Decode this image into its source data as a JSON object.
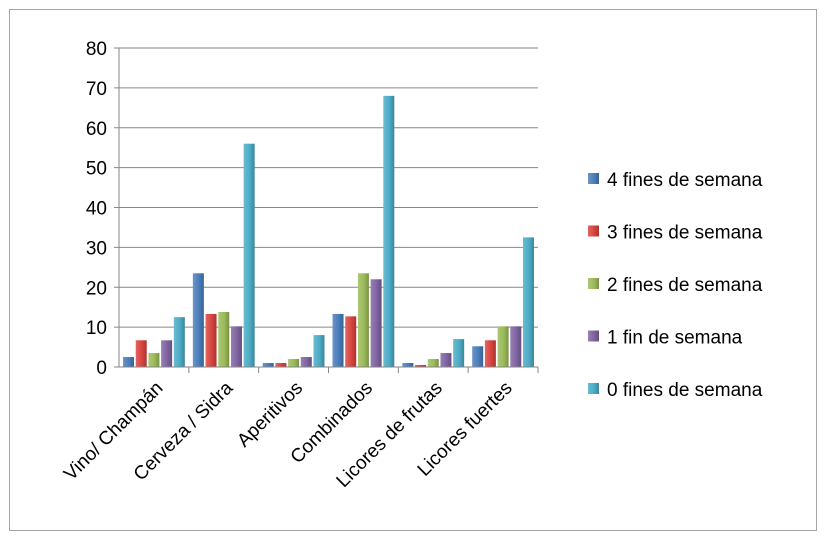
{
  "chart_data": {
    "type": "bar",
    "categories": [
      "Vino/ Champán",
      "Cerveza / Sidra",
      "Aperitivos",
      "Combinados",
      "Licores de frutas",
      "Licores fuertes"
    ],
    "series": [
      {
        "name": "4 fines de semana",
        "color": "#4a7ebb",
        "values": [
          2.5,
          23.5,
          1,
          13.3,
          1,
          5.2
        ]
      },
      {
        "name": "3 fines de semana",
        "color": "#d9443f",
        "values": [
          6.7,
          13.3,
          1,
          12.7,
          0.5,
          6.7
        ]
      },
      {
        "name": "2 fines de semana",
        "color": "#9bbb59",
        "values": [
          3.5,
          13.8,
          2,
          23.5,
          2,
          10.2
        ]
      },
      {
        "name": "1 fin de semana",
        "color": "#8064a2",
        "values": [
          6.7,
          10.2,
          2.5,
          22,
          3.5,
          10.2
        ]
      },
      {
        "name": "0 fines de semana",
        "color": "#4bacc6",
        "values": [
          12.5,
          56,
          8,
          68,
          7,
          32.5
        ]
      }
    ],
    "ylim": [
      0,
      80
    ],
    "yticks": [
      0,
      10,
      20,
      30,
      40,
      50,
      60,
      70,
      80
    ],
    "grid": true,
    "legend_position": "right",
    "title": "",
    "xlabel": "",
    "ylabel": ""
  }
}
